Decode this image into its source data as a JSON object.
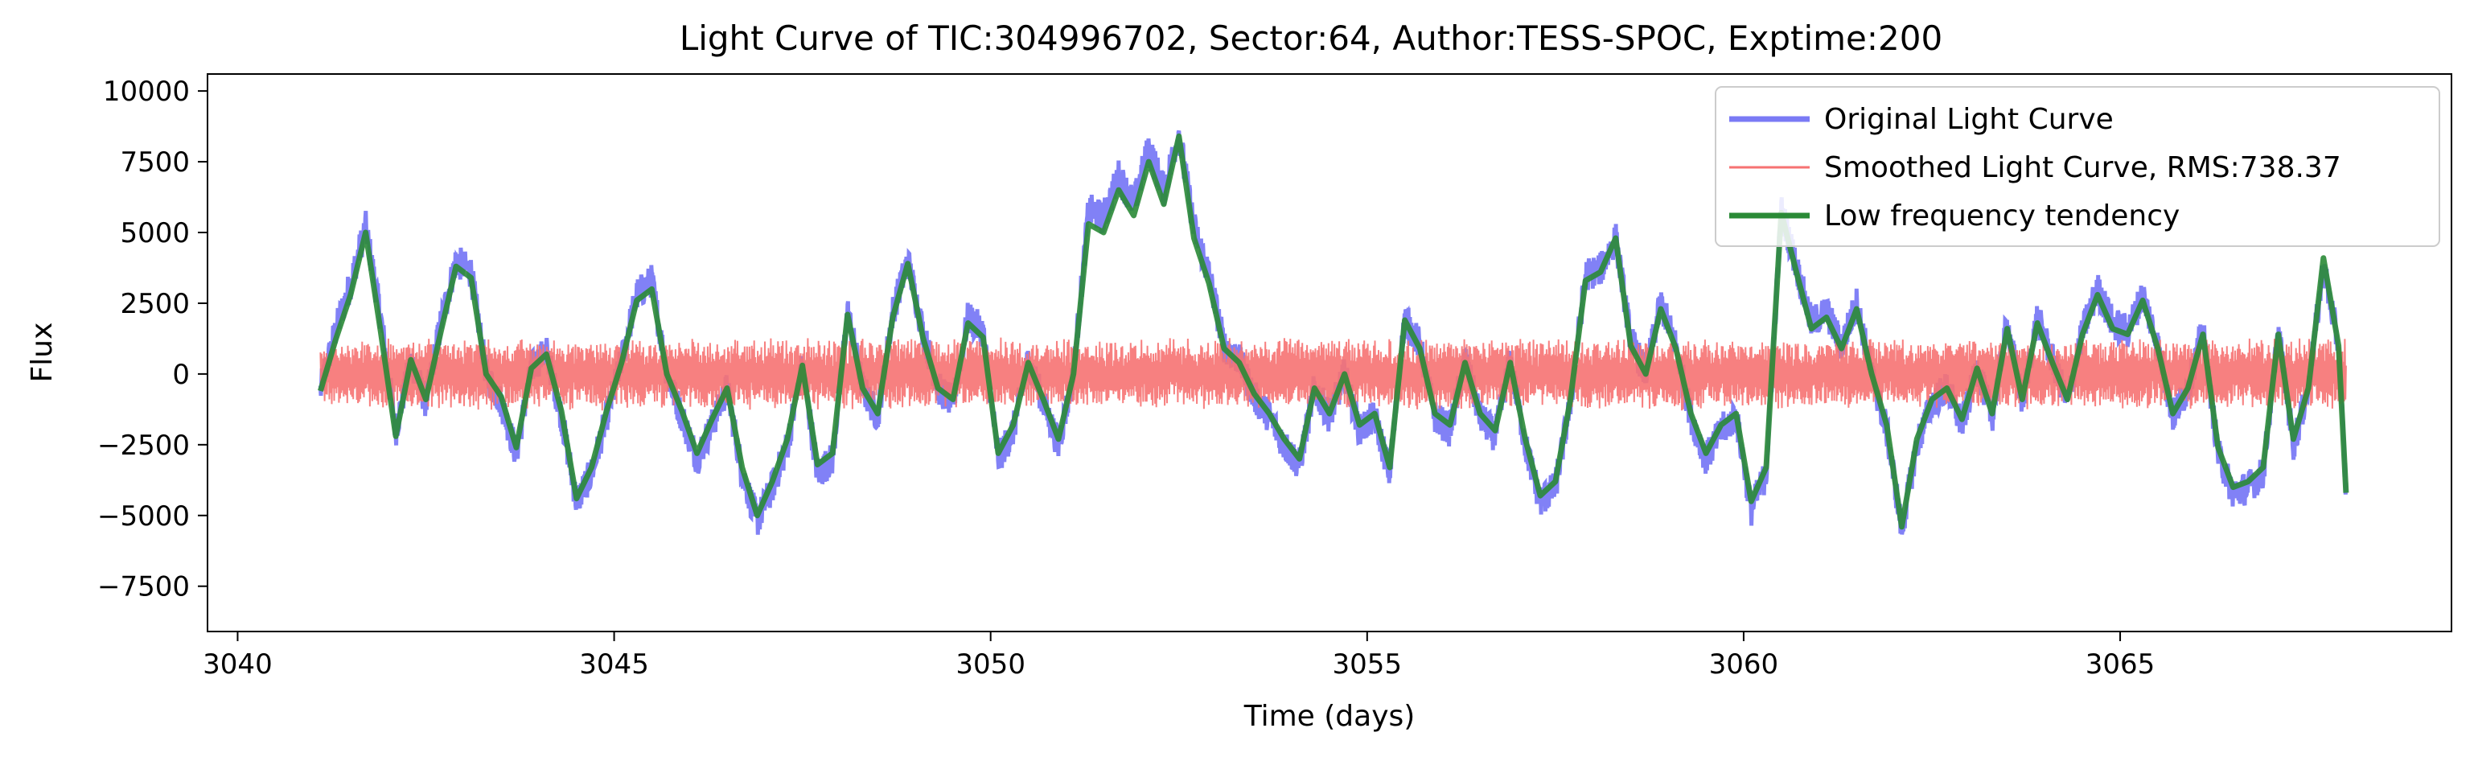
{
  "chart_data": {
    "type": "line",
    "title": "Light Curve of TIC:304996702, Sector:64, Author:TESS-SPOC, Exptime:200",
    "xlabel": "Time (days)",
    "ylabel": "Flux",
    "xlim": [
      3039.6,
      3069.4
    ],
    "ylim": [
      -9100,
      10600
    ],
    "xticks": [
      3040,
      3045,
      3050,
      3055,
      3060,
      3065
    ],
    "yticks": [
      -7500,
      -5000,
      -2500,
      0,
      2500,
      5000,
      7500,
      10000
    ],
    "xtick_labels": [
      "3040",
      "3045",
      "3050",
      "3055",
      "3060",
      "3065"
    ],
    "ytick_labels": [
      "−7500",
      "−5000",
      "−2500",
      "0",
      "2500",
      "5000",
      "7500",
      "10000"
    ],
    "grid": false,
    "legend_position": "upper-right",
    "series": [
      {
        "name": "Original Light Curve",
        "color": "#7a7af5",
        "noise_amplitude": 600,
        "x": [
          3041.1,
          3041.3,
          3041.5,
          3041.7,
          3041.9,
          3042.1,
          3042.3,
          3042.5,
          3042.7,
          3042.9,
          3043.1,
          3043.3,
          3043.5,
          3043.7,
          3043.9,
          3044.1,
          3044.3,
          3044.5,
          3044.7,
          3044.9,
          3045.1,
          3045.3,
          3045.5,
          3045.7,
          3045.9,
          3046.1,
          3046.3,
          3046.5,
          3046.7,
          3046.9,
          3047.1,
          3047.3,
          3047.5,
          3047.7,
          3047.9,
          3048.1,
          3048.3,
          3048.5,
          3048.7,
          3048.9,
          3049.1,
          3049.3,
          3049.5,
          3049.7,
          3049.9,
          3050.1,
          3050.3,
          3050.5,
          3050.7,
          3050.9,
          3051.1,
          3051.3,
          3051.5,
          3051.7,
          3051.9,
          3052.1,
          3052.3,
          3052.5,
          3052.7,
          3052.9,
          3053.1,
          3053.3,
          3053.5,
          3053.7,
          3053.9,
          3054.1,
          3054.3,
          3054.5,
          3054.7,
          3054.9,
          3055.1,
          3055.3,
          3055.5,
          3055.7,
          3055.9,
          3056.1,
          3056.3,
          3056.5,
          3056.7,
          3056.9,
          3057.1,
          3057.3,
          3057.5,
          3057.7,
          3057.9,
          3058.1,
          3058.3,
          3058.5,
          3058.7,
          3058.9,
          3059.1,
          3059.3,
          3059.5,
          3059.7,
          3059.9,
          3060.1,
          3060.3,
          3060.5,
          3060.7,
          3060.9,
          3061.1,
          3061.3,
          3061.5,
          3061.7,
          3061.9,
          3062.1,
          3062.3,
          3062.5,
          3062.7,
          3062.9,
          3063.1,
          3063.3,
          3063.5,
          3063.7,
          3063.9,
          3064.1,
          3064.3,
          3064.5,
          3064.7,
          3064.9,
          3065.1,
          3065.3,
          3065.5,
          3065.7,
          3065.9,
          3066.1,
          3066.3,
          3066.5,
          3066.7,
          3066.9,
          3067.1,
          3067.3,
          3067.5,
          3067.7,
          3067.9,
          3068.0
        ],
        "y": [
          -600,
          1500,
          3200,
          5200,
          2000,
          -2000,
          500,
          -1000,
          1800,
          4000,
          3600,
          0,
          -1000,
          -2800,
          200,
          800,
          -1500,
          -4500,
          -3500,
          -1500,
          500,
          2800,
          3300,
          0,
          -1500,
          -3000,
          -1800,
          -500,
          -3500,
          -5200,
          -4000,
          -2500,
          300,
          -3500,
          -3000,
          2200,
          -500,
          -1500,
          2200,
          4000,
          1500,
          -500,
          -1000,
          2000,
          1500,
          -3000,
          -2000,
          500,
          -1000,
          -2500,
          0,
          5800,
          5500,
          7000,
          6000,
          8000,
          6500,
          8500,
          5200,
          3500,
          1000,
          500,
          -800,
          -1500,
          -2500,
          -3200,
          -500,
          -1500,
          0,
          -2000,
          -1500,
          -3500,
          2000,
          1000,
          -1500,
          -2000,
          500,
          -1500,
          -2200,
          500,
          -2500,
          -4500,
          -4000,
          -1000,
          3500,
          3700,
          4800,
          1200,
          0,
          2500,
          1000,
          -1500,
          -3000,
          -2000,
          -1500,
          -4800,
          -3500,
          5800,
          3800,
          1800,
          2200,
          1000,
          2500,
          0,
          -2000,
          -5500,
          -2500,
          -1000,
          -500,
          -1800,
          200,
          -1500,
          1800,
          -1000,
          2000,
          500,
          -1000,
          1500,
          3000,
          1800,
          1500,
          2800,
          1000,
          -1500,
          -500,
          1500,
          -2800,
          -4200,
          -4000,
          -3500,
          1500,
          -2500,
          -500,
          3800,
          1000,
          -4200
        ]
      },
      {
        "name": "Smoothed Light Curve, RMS:738.37",
        "color": "#f67272",
        "amplitude": 1150,
        "x_range": [
          3041.1,
          3068.0
        ]
      },
      {
        "name": "Low frequency tendency",
        "color": "#2a8a36",
        "x": [
          3041.1,
          3041.3,
          3041.5,
          3041.7,
          3041.9,
          3042.1,
          3042.3,
          3042.5,
          3042.7,
          3042.9,
          3043.1,
          3043.3,
          3043.5,
          3043.7,
          3043.9,
          3044.1,
          3044.3,
          3044.5,
          3044.7,
          3044.9,
          3045.1,
          3045.3,
          3045.5,
          3045.7,
          3045.9,
          3046.1,
          3046.3,
          3046.5,
          3046.7,
          3046.9,
          3047.1,
          3047.3,
          3047.5,
          3047.7,
          3047.9,
          3048.1,
          3048.3,
          3048.5,
          3048.7,
          3048.9,
          3049.1,
          3049.3,
          3049.5,
          3049.7,
          3049.9,
          3050.1,
          3050.3,
          3050.5,
          3050.7,
          3050.9,
          3051.1,
          3051.3,
          3051.5,
          3051.7,
          3051.9,
          3052.1,
          3052.3,
          3052.5,
          3052.7,
          3052.9,
          3053.1,
          3053.3,
          3053.5,
          3053.7,
          3053.9,
          3054.1,
          3054.3,
          3054.5,
          3054.7,
          3054.9,
          3055.1,
          3055.3,
          3055.5,
          3055.7,
          3055.9,
          3056.1,
          3056.3,
          3056.5,
          3056.7,
          3056.9,
          3057.1,
          3057.3,
          3057.5,
          3057.7,
          3057.9,
          3058.1,
          3058.3,
          3058.5,
          3058.7,
          3058.9,
          3059.1,
          3059.3,
          3059.5,
          3059.7,
          3059.9,
          3060.1,
          3060.3,
          3060.5,
          3060.7,
          3060.9,
          3061.1,
          3061.3,
          3061.5,
          3061.7,
          3061.9,
          3062.1,
          3062.3,
          3062.5,
          3062.7,
          3062.9,
          3063.1,
          3063.3,
          3063.5,
          3063.7,
          3063.9,
          3064.1,
          3064.3,
          3064.5,
          3064.7,
          3064.9,
          3065.1,
          3065.3,
          3065.5,
          3065.7,
          3065.9,
          3066.1,
          3066.3,
          3066.5,
          3066.7,
          3066.9,
          3067.1,
          3067.3,
          3067.5,
          3067.7,
          3067.9,
          3068.0
        ],
        "y": [
          -600,
          1200,
          2800,
          5000,
          1500,
          -2200,
          500,
          -900,
          1500,
          3800,
          3400,
          0,
          -800,
          -2600,
          200,
          700,
          -1300,
          -4400,
          -3300,
          -1300,
          400,
          2600,
          3000,
          0,
          -1300,
          -2800,
          -1600,
          -500,
          -3300,
          -5000,
          -3800,
          -2300,
          300,
          -3200,
          -2800,
          2100,
          -500,
          -1400,
          2000,
          3900,
          1300,
          -500,
          -900,
          1800,
          1300,
          -2800,
          -1800,
          400,
          -900,
          -2300,
          0,
          5300,
          5000,
          6500,
          5600,
          7500,
          6000,
          8400,
          4800,
          3200,
          900,
          400,
          -700,
          -1400,
          -2300,
          -3000,
          -500,
          -1400,
          0,
          -1800,
          -1400,
          -3300,
          1900,
          900,
          -1400,
          -1800,
          400,
          -1400,
          -2000,
          400,
          -2300,
          -4300,
          -3800,
          -900,
          3300,
          3600,
          4800,
          1000,
          0,
          2300,
          900,
          -1400,
          -2800,
          -1800,
          -1400,
          -4500,
          -3300,
          5700,
          3600,
          1600,
          2000,
          900,
          2300,
          0,
          -1800,
          -5400,
          -2300,
          -900,
          -500,
          -1600,
          200,
          -1400,
          1600,
          -900,
          1800,
          400,
          -900,
          1400,
          2800,
          1600,
          1400,
          2600,
          900,
          -1400,
          -500,
          1400,
          -2600,
          -4000,
          -3800,
          -3300,
          1400,
          -2300,
          -500,
          4100,
          1000,
          -4200
        ]
      }
    ]
  }
}
